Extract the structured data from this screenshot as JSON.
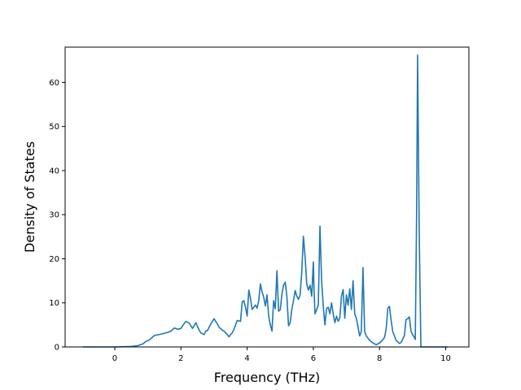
{
  "chart_data": {
    "type": "line",
    "title": "",
    "xlabel": "Frequency (THz)",
    "ylabel": "Density of States",
    "xlim": [
      -1.5,
      10.7
    ],
    "ylim": [
      0,
      68
    ],
    "xticks": [
      0,
      2,
      4,
      6,
      8,
      10
    ],
    "yticks": [
      0,
      10,
      20,
      30,
      40,
      50,
      60
    ],
    "grid": false,
    "legend": "none",
    "series": [
      {
        "color": "#1f77b4",
        "x": [
          -0.95,
          0.0,
          0.5,
          0.7,
          0.85,
          0.95,
          1.05,
          1.15,
          1.2,
          1.4,
          1.6,
          1.7,
          1.8,
          1.9,
          2.0,
          2.05,
          2.15,
          2.25,
          2.35,
          2.45,
          2.55,
          2.6,
          2.7,
          2.75,
          2.8,
          2.9,
          3.0,
          3.1,
          3.15,
          3.25,
          3.3,
          3.4,
          3.45,
          3.5,
          3.55,
          3.6,
          3.7,
          3.8,
          3.85,
          3.9,
          3.95,
          4.0,
          4.05,
          4.1,
          4.15,
          4.2,
          4.25,
          4.3,
          4.35,
          4.4,
          4.45,
          4.5,
          4.55,
          4.6,
          4.65,
          4.7,
          4.75,
          4.8,
          4.85,
          4.9,
          4.95,
          5.0,
          5.05,
          5.1,
          5.15,
          5.2,
          5.25,
          5.3,
          5.35,
          5.4,
          5.45,
          5.5,
          5.55,
          5.6,
          5.65,
          5.7,
          5.75,
          5.8,
          5.85,
          5.9,
          5.95,
          6.0,
          6.02,
          6.05,
          6.1,
          6.15,
          6.2,
          6.25,
          6.3,
          6.35,
          6.4,
          6.45,
          6.5,
          6.55,
          6.6,
          6.65,
          6.7,
          6.75,
          6.8,
          6.85,
          6.9,
          6.95,
          7.0,
          7.05,
          7.1,
          7.15,
          7.2,
          7.25,
          7.3,
          7.35,
          7.4,
          7.45,
          7.5,
          7.55,
          7.6,
          7.7,
          7.8,
          7.9,
          8.0,
          8.1,
          8.15,
          8.2,
          8.25,
          8.3,
          8.35,
          8.4,
          8.5,
          8.6,
          8.65,
          8.7,
          8.75,
          8.8,
          8.85,
          8.9,
          8.95,
          9.0,
          9.05,
          9.08,
          9.12,
          9.15,
          9.2,
          9.25,
          9.3,
          9.5,
          10.0,
          10.05
        ],
        "y": [
          0.0,
          0.0,
          0.1,
          0.3,
          0.7,
          1.3,
          1.6,
          2.3,
          2.6,
          2.9,
          3.3,
          3.6,
          4.3,
          4.0,
          4.2,
          4.8,
          5.8,
          5.4,
          4.2,
          5.5,
          3.8,
          3.2,
          2.8,
          3.6,
          3.7,
          5.2,
          6.4,
          5.2,
          4.5,
          3.8,
          3.6,
          2.8,
          2.3,
          2.8,
          3.2,
          4.0,
          6.0,
          5.8,
          10.2,
          10.5,
          9.0,
          7.0,
          12.9,
          11.0,
          8.5,
          9.0,
          9.5,
          8.8,
          10.5,
          14.3,
          12.5,
          11.3,
          9.3,
          11.8,
          7.0,
          5.0,
          3.6,
          10.5,
          8.7,
          17.3,
          8.1,
          8.4,
          12.0,
          14.0,
          14.7,
          11.5,
          4.8,
          5.5,
          8.5,
          10.5,
          12.8,
          11.5,
          10.8,
          11.8,
          17.0,
          25.1,
          20.5,
          14.3,
          12.9,
          14.0,
          11.5,
          19.3,
          13.0,
          7.5,
          8.5,
          9.5,
          27.4,
          15.0,
          9.2,
          5.0,
          8.7,
          9.0,
          7.5,
          10.0,
          7.5,
          5.5,
          7.0,
          5.8,
          6.6,
          11.5,
          13.0,
          6.5,
          11.8,
          9.5,
          13.2,
          8.5,
          15.0,
          7.5,
          6.5,
          4.5,
          2.5,
          3.5,
          18.0,
          3.5,
          2.5,
          1.5,
          0.9,
          0.5,
          0.9,
          1.6,
          2.2,
          4.0,
          8.8,
          9.2,
          6.0,
          3.5,
          1.5,
          0.8,
          1.0,
          1.8,
          2.5,
          6.2,
          6.4,
          6.8,
          3.6,
          2.8,
          2.2,
          1.7,
          30.0,
          66.2,
          25.0,
          0.0,
          0.0,
          0.0,
          0.0,
          0.0
        ]
      }
    ]
  }
}
